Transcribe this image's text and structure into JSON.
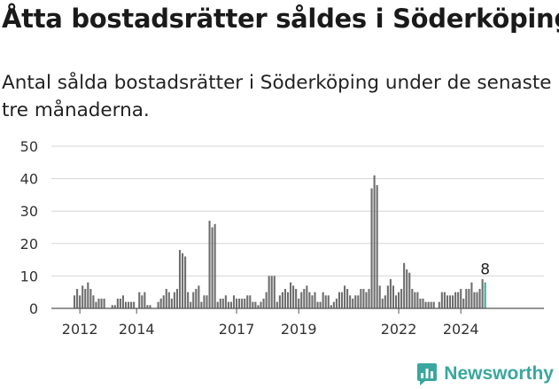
{
  "header": {
    "title": "Åtta bostadsrätter såldes i Söderköping",
    "subtitle": "Antal sålda bostadsrätter i Söderköping under de senaste tre månaderna."
  },
  "brand": {
    "name": "Newsworthy",
    "icon": "newsworthy-logo-icon",
    "color": "#3aa79e"
  },
  "chart_data": {
    "type": "bar",
    "title": "Åtta bostadsrätter såldes i Söderköping",
    "subtitle": "Antal sålda bostadsrätter i Söderköping under de senaste tre månaderna.",
    "xlabel": "",
    "ylabel": "",
    "ylim": [
      0,
      50
    ],
    "yticks": [
      0,
      10,
      20,
      30,
      40,
      50
    ],
    "x_tick_labels": [
      {
        "label": "2012",
        "index": 2
      },
      {
        "label": "2014",
        "index": 23
      },
      {
        "label": "2017",
        "index": 60
      },
      {
        "label": "2019",
        "index": 83
      },
      {
        "label": "2022",
        "index": 120
      },
      {
        "label": "2024",
        "index": 143
      }
    ],
    "grid": true,
    "bar_color": "#6e6e6e",
    "highlight_color": "#3aa79e",
    "highlight_label": "8",
    "values": [
      4,
      6,
      4,
      7,
      6,
      8,
      6,
      4,
      2,
      3,
      3,
      3,
      0,
      0,
      1,
      1,
      3,
      3,
      4,
      2,
      2,
      2,
      2,
      0,
      5,
      4,
      5,
      1,
      1,
      0,
      0,
      2,
      3,
      4,
      6,
      5,
      3,
      5,
      6,
      18,
      17,
      16,
      5,
      2,
      5,
      6,
      7,
      2,
      4,
      4,
      27,
      25,
      26,
      2,
      3,
      3,
      4,
      2,
      2,
      4,
      3,
      3,
      3,
      3,
      4,
      4,
      2,
      2,
      1,
      2,
      3,
      5,
      10,
      10,
      10,
      2,
      4,
      5,
      6,
      5,
      8,
      7,
      6,
      3,
      5,
      6,
      7,
      5,
      4,
      5,
      2,
      2,
      5,
      4,
      4,
      1,
      2,
      3,
      5,
      5,
      7,
      6,
      4,
      3,
      4,
      4,
      6,
      6,
      5,
      6,
      37,
      41,
      38,
      7,
      3,
      4,
      7,
      9,
      7,
      4,
      5,
      6,
      14,
      12,
      11,
      6,
      5,
      5,
      3,
      3,
      2,
      2,
      2,
      2,
      0,
      2,
      5,
      5,
      4,
      4,
      4,
      5,
      5,
      6,
      3,
      6,
      6,
      8,
      5,
      5,
      6,
      9,
      8
    ]
  }
}
